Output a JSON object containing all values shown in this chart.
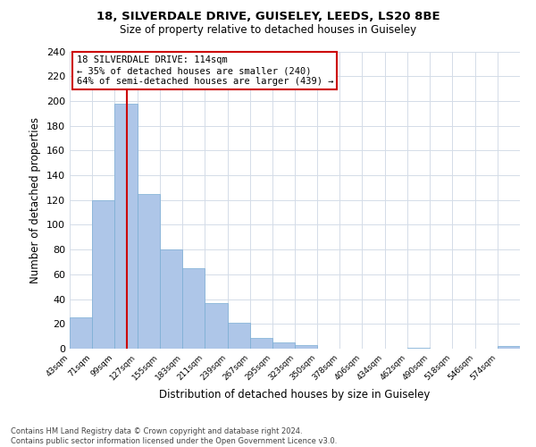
{
  "title": "18, SILVERDALE DRIVE, GUISELEY, LEEDS, LS20 8BE",
  "subtitle": "Size of property relative to detached houses in Guiseley",
  "xlabel": "Distribution of detached houses by size in Guiseley",
  "ylabel": "Number of detached properties",
  "bar_edges": [
    43,
    71,
    99,
    127,
    155,
    183,
    211,
    239,
    267,
    295,
    323,
    350,
    378,
    406,
    434,
    462,
    490,
    518,
    546,
    574,
    602
  ],
  "bar_heights": [
    25,
    120,
    198,
    125,
    80,
    65,
    37,
    21,
    9,
    5,
    3,
    0,
    0,
    0,
    0,
    1,
    0,
    0,
    0,
    2
  ],
  "bar_color": "#aec6e8",
  "bar_edge_color": "#7aadd4",
  "vline_x": 114,
  "vline_color": "#cc0000",
  "annotation_line1": "18 SILVERDALE DRIVE: 114sqm",
  "annotation_line2": "← 35% of detached houses are smaller (240)",
  "annotation_line3": "64% of semi-detached houses are larger (439) →",
  "annotation_box_color": "#cc0000",
  "ylim": [
    0,
    240
  ],
  "yticks": [
    0,
    20,
    40,
    60,
    80,
    100,
    120,
    140,
    160,
    180,
    200,
    220,
    240
  ],
  "footer_line1": "Contains HM Land Registry data © Crown copyright and database right 2024.",
  "footer_line2": "Contains public sector information licensed under the Open Government Licence v3.0.",
  "bg_color": "#ffffff",
  "grid_color": "#d4dce8"
}
